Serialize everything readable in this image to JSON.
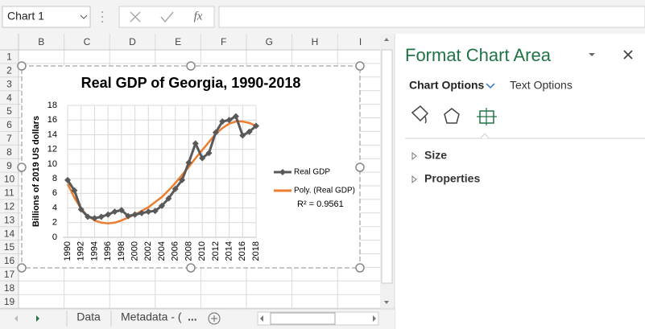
{
  "ui": {
    "name_box": "Chart 1",
    "fx": "fx",
    "columns": [
      "B",
      "C",
      "D",
      "E",
      "F",
      "G",
      "H",
      "I"
    ],
    "rows": [
      "1",
      "2",
      "3",
      "4",
      "5",
      "6",
      "7",
      "8",
      "9",
      "10",
      "11",
      "12",
      "13",
      "14",
      "15",
      "16",
      "17",
      "18",
      "19"
    ],
    "panel_title": "Format Chart Area",
    "chart_options": "Chart Options",
    "text_options": "Text Options",
    "sections": [
      "Size",
      "Properties"
    ],
    "tabs": [
      "Data",
      "Metadata - ("
    ],
    "more_tabs": "..."
  },
  "chart_data": {
    "type": "line",
    "title": "Real GDP of Georgia, 1990-2018",
    "y_label": "Billions of 2019 US dollars",
    "x": [
      1990,
      1991,
      1992,
      1993,
      1994,
      1995,
      1996,
      1997,
      1998,
      1999,
      2000,
      2001,
      2002,
      2003,
      2004,
      2005,
      2006,
      2007,
      2008,
      2009,
      2010,
      2011,
      2012,
      2013,
      2014,
      2015,
      2016,
      2017,
      2018
    ],
    "series": [
      {
        "name": "Real GDP",
        "color": "#595959",
        "marker": "diamond",
        "values": [
          7.8,
          6.4,
          3.8,
          2.8,
          2.6,
          2.8,
          3.1,
          3.5,
          3.7,
          2.9,
          3.1,
          3.3,
          3.5,
          3.6,
          4.3,
          5.3,
          6.6,
          7.8,
          10.2,
          12.8,
          10.8,
          11.5,
          14.3,
          15.8,
          16.0,
          16.5,
          13.9,
          14.4,
          15.2
        ]
      },
      {
        "name": "Poly. (Real GDP)",
        "color": "#ed7d31",
        "values": [
          7.3,
          5.4,
          3.9,
          2.9,
          2.3,
          2.0,
          1.9,
          2.0,
          2.3,
          2.7,
          3.1,
          3.6,
          4.1,
          4.8,
          5.5,
          6.4,
          7.4,
          8.5,
          9.6,
          10.8,
          11.9,
          13.0,
          14.1,
          14.9,
          15.5,
          15.8,
          15.8,
          15.6,
          15.2
        ]
      }
    ],
    "annotation": "R² = 0.9561",
    "xlim": [
      1990,
      2018
    ],
    "xticks": [
      1990,
      1992,
      1994,
      1996,
      1998,
      2000,
      2002,
      2004,
      2006,
      2008,
      2010,
      2012,
      2014,
      2016,
      2018
    ],
    "ylim": [
      0,
      18
    ],
    "yticks": [
      0,
      2,
      4,
      6,
      8,
      10,
      12,
      14,
      16,
      18
    ],
    "grid": true,
    "legend": "right"
  }
}
